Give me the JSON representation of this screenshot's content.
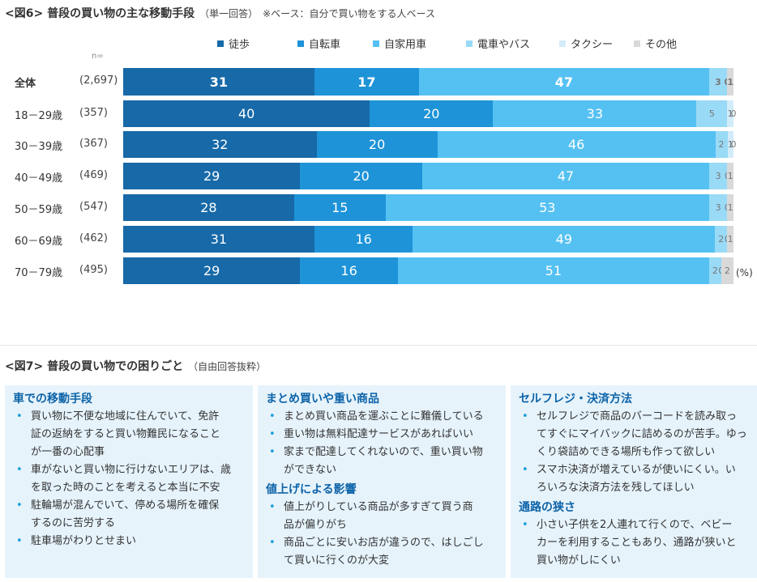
{
  "fig6": {
    "title": "<図6> 普段の買い物の主な移動手段",
    "subtitle": "（単一回答）",
    "note": "※ベース：自分で買い物をする人ベース",
    "n_label": "n=",
    "unit": "(%)"
  },
  "chart_data": {
    "type": "bar",
    "orientation": "horizontal",
    "stacked": true,
    "percent": true,
    "categories": [
      "全体",
      "18－29歳",
      "30－39歳",
      "40－49歳",
      "50－59歳",
      "60－69歳",
      "70－79歳"
    ],
    "sample_sizes": [
      "(2,697)",
      "(357)",
      "(367)",
      "(469)",
      "(547)",
      "(462)",
      "(495)"
    ],
    "series": [
      {
        "name": "徒歩",
        "color": "#1769a8",
        "values": [
          31,
          40,
          32,
          29,
          28,
          31,
          29
        ]
      },
      {
        "name": "自転車",
        "color": "#1e93d8",
        "values": [
          17,
          20,
          20,
          20,
          15,
          16,
          16
        ]
      },
      {
        "name": "自家用車",
        "color": "#55c1f2",
        "values": [
          47,
          33,
          46,
          47,
          53,
          49,
          51
        ]
      },
      {
        "name": "電車やバス",
        "color": "#99daf6",
        "values": [
          3,
          5,
          2,
          3,
          3,
          2,
          2
        ]
      },
      {
        "name": "タクシー",
        "color": "#d2ecf9",
        "values": [
          0,
          1,
          1,
          0,
          0,
          0,
          0
        ]
      },
      {
        "name": "その他",
        "color": "#d9d9d9",
        "values": [
          1,
          0,
          0,
          1,
          1,
          1,
          2
        ]
      }
    ],
    "xlim": [
      0,
      100
    ],
    "legend": "top"
  },
  "fig7": {
    "title": "<図7> 普段の買い物での困りごと",
    "subtitle": "（自由回答抜粋）",
    "columns": [
      {
        "sections": [
          {
            "title": "車での移動手段",
            "items": [
              [
                "買い物に不便な地域に住んでいて、免許",
                "証の返納をすると買い物難民になること",
                "が一番の心配事"
              ],
              [
                "車がないと買い物に行けないエリアは、歳",
                "を取った時のことを考えると本当に不安"
              ],
              [
                "駐輪場が混んでいて、停める場所を確保",
                "するのに苦労する"
              ],
              [
                "駐車場がわりとせまい"
              ]
            ]
          }
        ]
      },
      {
        "sections": [
          {
            "title": "まとめ買いや重い商品",
            "items": [
              [
                "まとめ買い商品を運ぶことに難儀している"
              ],
              [
                "重い物は無料配達サービスがあればいい"
              ],
              [
                "家まで配達してくれないので、重い買い物",
                "ができない"
              ]
            ]
          },
          {
            "title": "値上げによる影響",
            "items": [
              [
                "値上がりしている商品が多すぎて買う商",
                "品が偏りがち"
              ],
              [
                "商品ごとに安いお店が違うので、はしごし",
                "て買いに行くのが大変"
              ]
            ]
          }
        ]
      },
      {
        "sections": [
          {
            "title": "セルフレジ・決済方法",
            "items": [
              [
                "セルフレジで商品のバーコードを読み取っ",
                "てすぐにマイバックに詰めるのが苦手。ゆっ",
                "くり袋詰めできる場所も作って欲しい"
              ],
              [
                "スマホ決済が増えているが使いにくい。い",
                "ろいろな決済方法を残してほしい"
              ]
            ]
          },
          {
            "title": "通路の狭さ",
            "items": [
              [
                "小さい子供を2人連れて行くので、ベビー",
                "カーを利用することもあり、通路が狭いと",
                "買い物がしにくい"
              ]
            ]
          }
        ]
      }
    ]
  }
}
